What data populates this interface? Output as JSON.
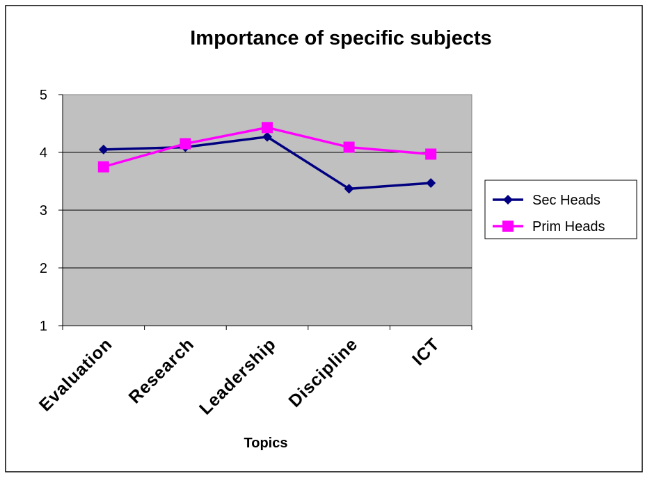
{
  "chart_data": {
    "type": "line",
    "title": "Importance of specific subjects",
    "xlabel": "Topics",
    "ylabel": "",
    "categories": [
      "Evaluation",
      "Research",
      "Leadership",
      "Discipline",
      "ICT"
    ],
    "ylim": [
      1,
      5
    ],
    "yticks": [
      "1",
      "2",
      "3",
      "4",
      "5"
    ],
    "grid": true,
    "legend_position": "right",
    "plot_background": "#c0c0c0",
    "series": [
      {
        "name": "Sec Heads",
        "color": "#000080",
        "marker": "diamond",
        "values": [
          4.05,
          4.09,
          4.27,
          3.37,
          3.47
        ]
      },
      {
        "name": "Prim Heads",
        "color": "#ff00ff",
        "marker": "square",
        "values": [
          3.75,
          4.15,
          4.43,
          4.09,
          3.97
        ]
      }
    ]
  }
}
